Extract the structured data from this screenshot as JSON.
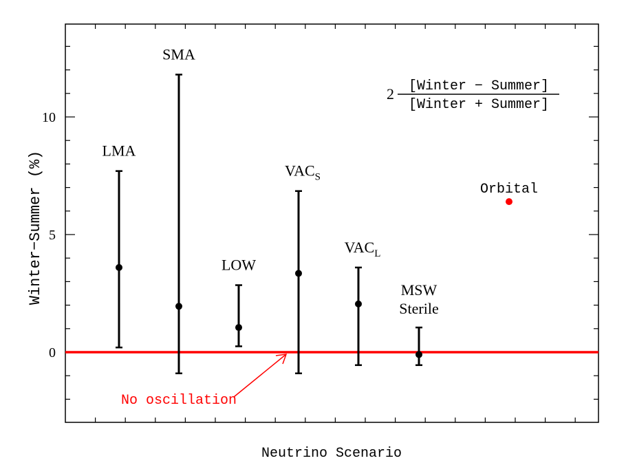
{
  "chart_data": {
    "type": "scatter",
    "title": "",
    "xlabel": "Neutrino Scenario",
    "ylabel": "Winter−Summer (%)",
    "ylim": [
      -3,
      14
    ],
    "yticks": [
      "0",
      "5",
      "10"
    ],
    "grid": false,
    "formula": {
      "coefficient": "2",
      "numerator": "[Winter − Summer]",
      "denominator": "[Winter + Summer]"
    },
    "series": [
      {
        "points": [
          {
            "label": "LMA",
            "sub": "",
            "value": 3.6,
            "low": 0.2,
            "high": 7.7
          },
          {
            "label": "SMA",
            "sub": "",
            "value": 1.95,
            "low": -0.9,
            "high": 11.8
          },
          {
            "label": "LOW",
            "sub": "",
            "value": 1.05,
            "low": 0.25,
            "high": 2.85
          },
          {
            "label": "VAC",
            "sub": "S",
            "value": 3.35,
            "low": -0.9,
            "high": 6.85
          },
          {
            "label": "VAC",
            "sub": "L",
            "value": 2.05,
            "low": -0.55,
            "high": 3.6
          },
          {
            "label": "MSW",
            "label2": "Sterile",
            "sub": "",
            "value": -0.1,
            "low": -0.55,
            "high": 1.05
          }
        ]
      }
    ],
    "orbital": {
      "label": "Orbital",
      "value": 6.4,
      "color": "#ff0000"
    },
    "reference_line": {
      "label": "No oscillation",
      "value": 0,
      "color": "#ff0000"
    }
  }
}
